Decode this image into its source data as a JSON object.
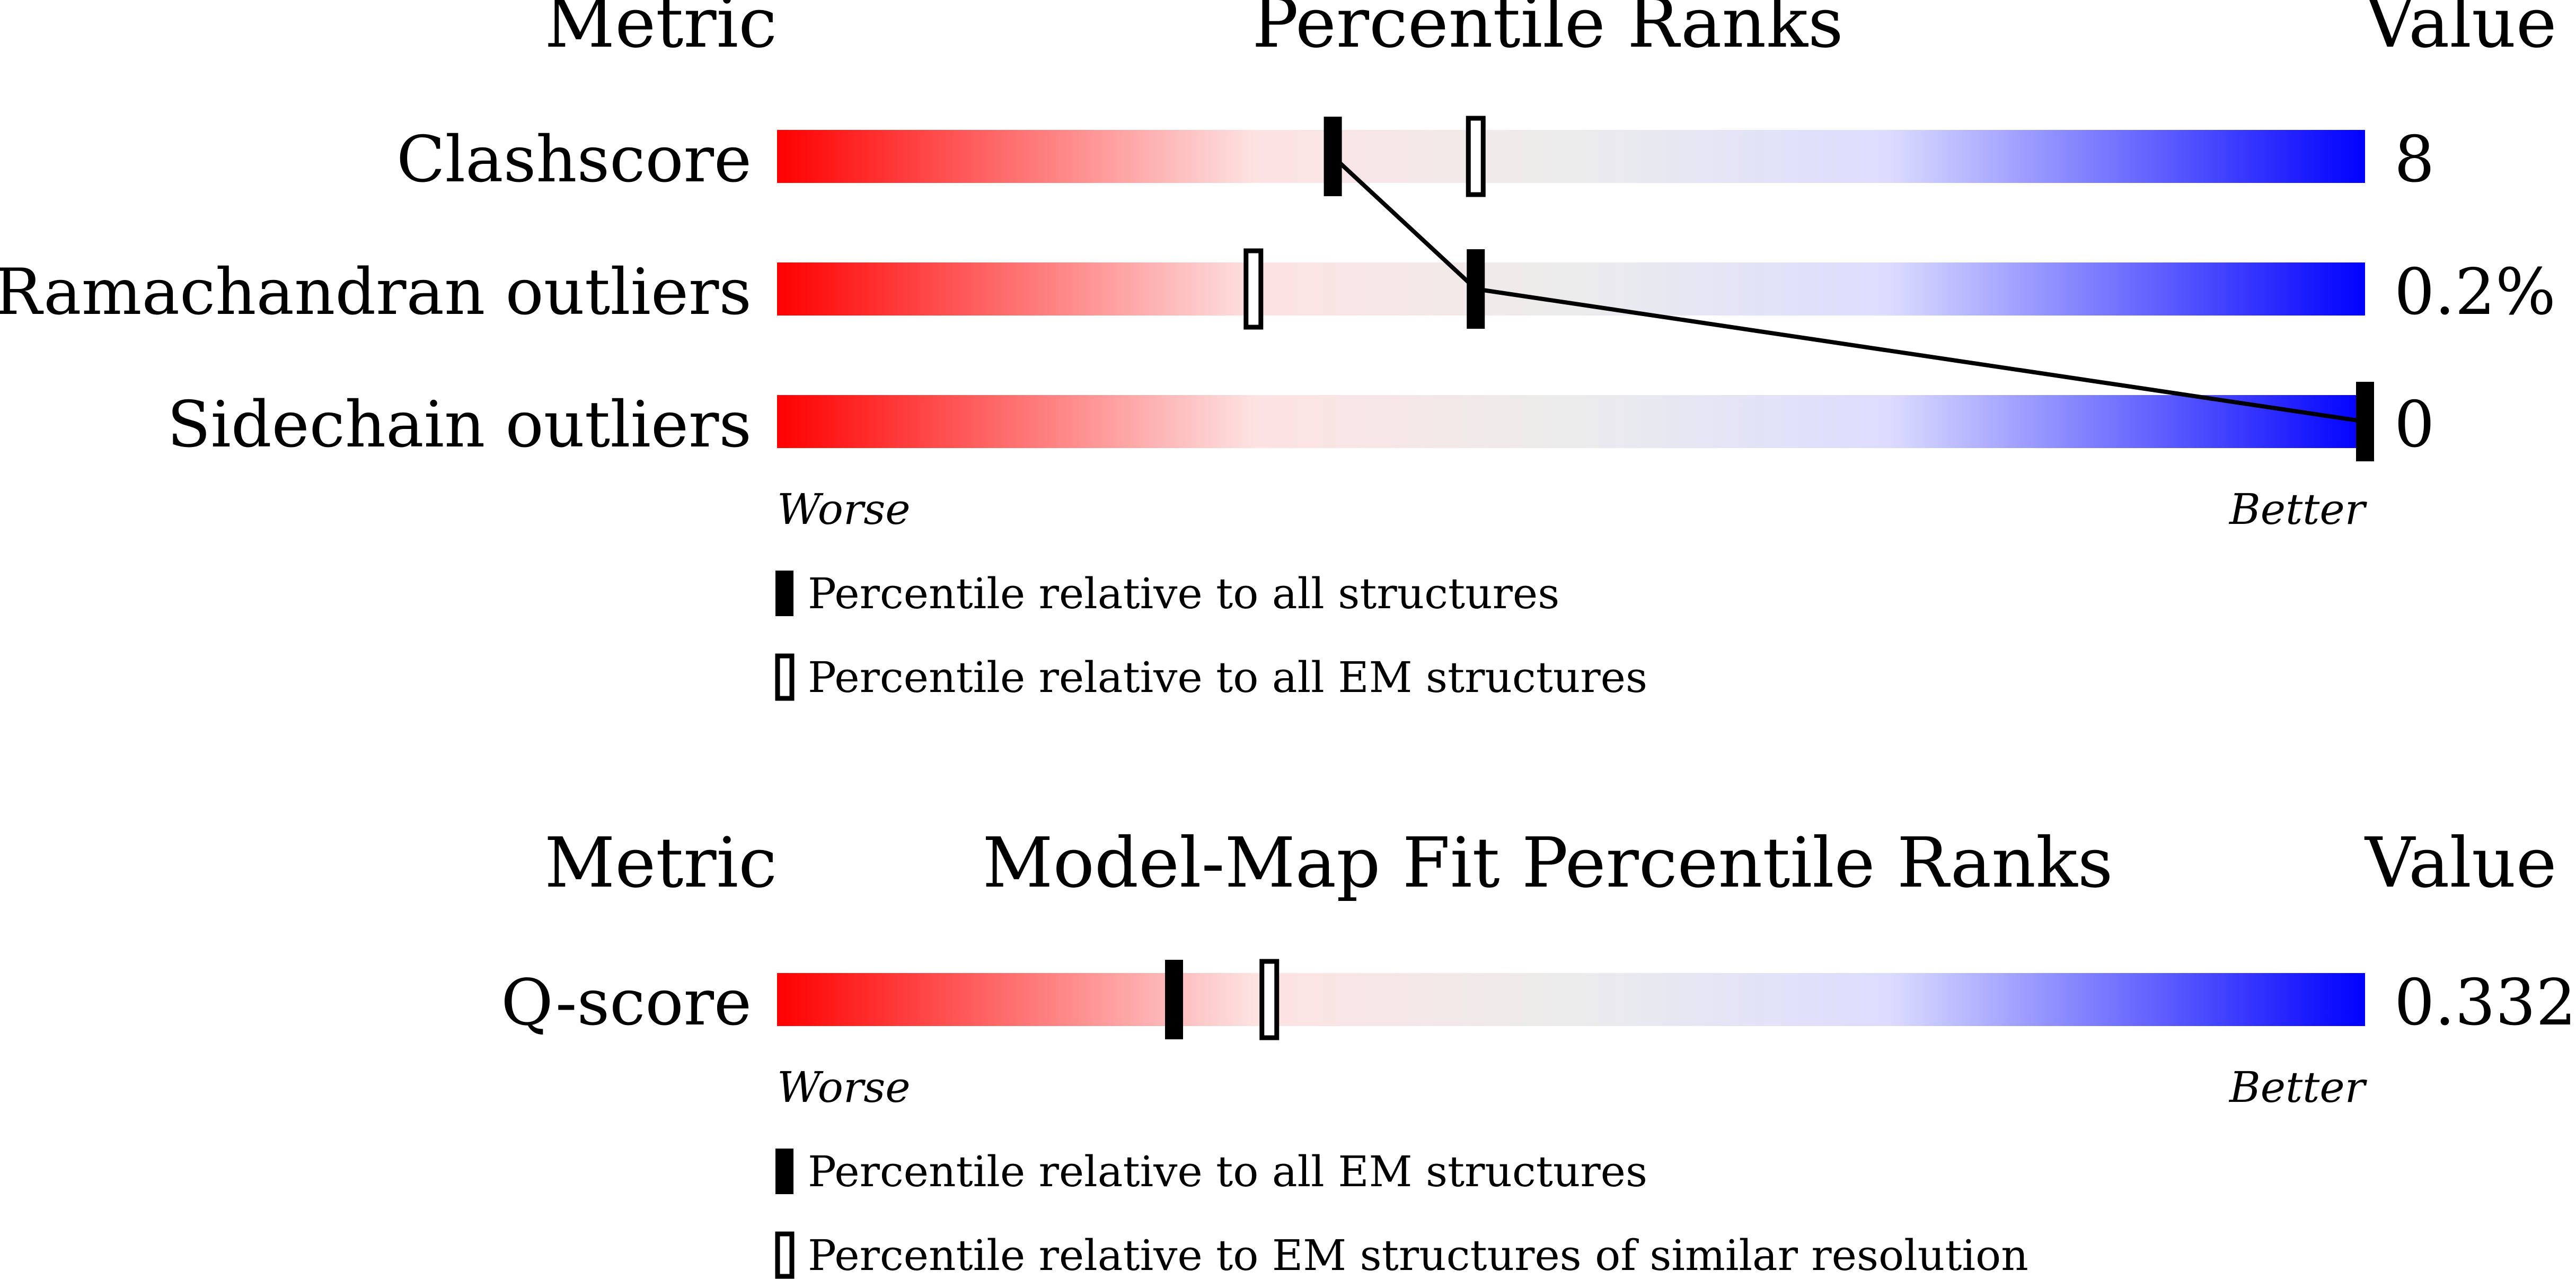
{
  "chart_data": [
    {
      "type": "percentile-slider",
      "header": {
        "metric": "Metric",
        "title": "Percentile Ranks",
        "value": "Value"
      },
      "rows": [
        {
          "label": "Clashscore",
          "value": "8",
          "percentile_all": 35,
          "percentile_em": 44
        },
        {
          "label": "Ramachandran outliers",
          "value": "0.2%",
          "percentile_all": 44,
          "percentile_em": 30
        },
        {
          "label": "Sidechain outliers",
          "value": "0",
          "percentile_all": 100,
          "percentile_em": null
        }
      ],
      "scale": {
        "worse": "Worse",
        "better": "Better",
        "range": [
          0,
          100
        ]
      },
      "legend": [
        {
          "kind": "filled",
          "text": "Percentile relative to all structures"
        },
        {
          "kind": "open",
          "text": "Percentile relative to all EM structures"
        }
      ],
      "connect_filled_markers": true
    },
    {
      "type": "percentile-slider",
      "header": {
        "metric": "Metric",
        "title": "Model-Map Fit Percentile Ranks",
        "value": "Value"
      },
      "rows": [
        {
          "label": "Q-score",
          "value": "0.332",
          "percentile_all": 25,
          "percentile_em": 31
        }
      ],
      "scale": {
        "worse": "Worse",
        "better": "Better",
        "range": [
          0,
          100
        ]
      },
      "legend": [
        {
          "kind": "filled",
          "text": "Percentile relative to all EM structures"
        },
        {
          "kind": "open",
          "text": "Percentile relative to EM structures of similar resolution"
        }
      ],
      "connect_filled_markers": false
    }
  ],
  "colors": {
    "worse": "#ff0000",
    "middle": "#ececec",
    "better": "#0000ff",
    "marker": "#000000"
  }
}
